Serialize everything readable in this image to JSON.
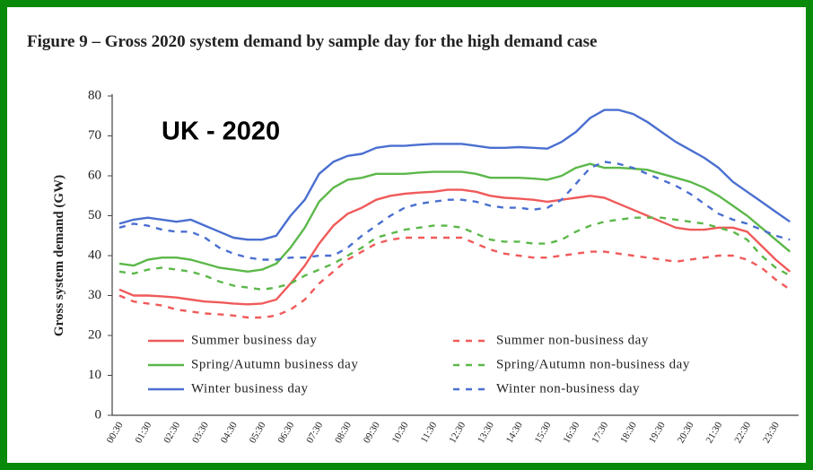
{
  "chart_data": {
    "type": "line",
    "title": "Figure 9 – Gross 2020 system demand by sample day for the high demand case",
    "annotation": "UK - 2020",
    "ylabel": "Gross system demand (GW)",
    "categories": [
      "00:30",
      null,
      "01:30",
      null,
      "02:30",
      null,
      "03:30",
      null,
      "04:30",
      null,
      "05:30",
      null,
      "06:30",
      null,
      "07:30",
      null,
      "08:30",
      null,
      "09:30",
      null,
      "10:30",
      null,
      "11:30",
      null,
      "12:30",
      null,
      "13:30",
      null,
      "14:30",
      null,
      "15:30",
      null,
      "16:30",
      null,
      "17:30",
      null,
      "18:30",
      null,
      "19:30",
      null,
      "20:30",
      null,
      "21:30",
      null,
      "22:30",
      null,
      "23:30",
      null
    ],
    "ylim": [
      0,
      80
    ],
    "yticks": [
      0,
      10,
      20,
      30,
      40,
      50,
      60,
      70,
      80
    ],
    "series": [
      {
        "name": "Summer business day",
        "color": "#f05a5a",
        "style": "solid",
        "values": [
          31.5,
          30,
          30,
          29.8,
          29.5,
          29,
          28.5,
          28.3,
          28,
          27.8,
          28,
          29,
          33,
          37.5,
          43,
          47.5,
          50.5,
          52,
          54,
          55,
          55.5,
          55.8,
          56,
          56.5,
          56.5,
          56,
          55,
          54.5,
          54.3,
          54,
          53.5,
          54,
          54.5,
          55,
          54.5,
          53,
          51.5,
          50,
          48.5,
          47,
          46.5,
          46.5,
          47,
          47,
          46,
          42.5,
          39,
          36
        ]
      },
      {
        "name": "Summer non-business day",
        "color": "#f05a5a",
        "style": "dashed",
        "values": [
          30,
          28.5,
          28,
          27.5,
          26.5,
          26,
          25.5,
          25.3,
          25,
          24.5,
          24.5,
          25,
          26.5,
          29,
          33,
          36,
          39,
          41,
          43,
          44,
          44.5,
          44.5,
          44.5,
          44.5,
          44.5,
          43,
          41.5,
          40.5,
          40,
          39.5,
          39.5,
          40,
          40.5,
          41,
          41,
          40.5,
          40,
          39.5,
          39,
          38.5,
          39,
          39.5,
          40,
          40,
          39,
          37,
          34,
          31.5
        ]
      },
      {
        "name": "Spring/Autumn business day",
        "color": "#5cb84a",
        "style": "solid",
        "values": [
          38,
          37.5,
          39,
          39.5,
          39.5,
          39,
          38,
          37,
          36.5,
          36,
          36.5,
          38,
          42,
          47,
          53.5,
          57,
          59,
          59.5,
          60.5,
          60.5,
          60.5,
          60.8,
          61,
          61,
          61,
          60.5,
          59.5,
          59.5,
          59.5,
          59.3,
          59,
          60,
          62,
          63,
          62,
          62,
          61.8,
          61.5,
          60.5,
          59.5,
          58.5,
          57,
          55,
          52.5,
          50,
          47,
          44,
          41
        ]
      },
      {
        "name": "Spring/Autumn non-business day",
        "color": "#5cb84a",
        "style": "dashed",
        "values": [
          36,
          35.5,
          36.5,
          37,
          36.5,
          36,
          35,
          33.5,
          32.5,
          32,
          31.5,
          32,
          33,
          35,
          36.5,
          38,
          40,
          42,
          44.5,
          45.5,
          46.5,
          47,
          47.5,
          47.5,
          47,
          45.5,
          44,
          43.5,
          43.5,
          43,
          43,
          44,
          46,
          47.5,
          48.5,
          49,
          49.5,
          49.5,
          49.5,
          49,
          48.5,
          48,
          47,
          46,
          44,
          40,
          37,
          35
        ]
      },
      {
        "name": "Winter business day",
        "color": "#4a6fd0",
        "style": "solid",
        "values": [
          48,
          49,
          49.5,
          49,
          48.5,
          49,
          47.5,
          46,
          44.5,
          44,
          44,
          45,
          50,
          54,
          60.5,
          63.5,
          65,
          65.5,
          67,
          67.5,
          67.5,
          67.8,
          68,
          68,
          68,
          67.5,
          67,
          67,
          67.2,
          67,
          66.8,
          68.5,
          71,
          74.5,
          76.5,
          76.5,
          75.5,
          73.5,
          71,
          68.5,
          66.5,
          64.5,
          62,
          58.5,
          56,
          53.5,
          51,
          48.5
        ]
      },
      {
        "name": "Winter non-business day",
        "color": "#4a6fd0",
        "style": "dashed",
        "values": [
          47,
          48,
          47.5,
          46.5,
          46,
          46,
          44.5,
          42,
          40.5,
          39.5,
          39,
          39,
          39.5,
          39.5,
          40,
          40,
          42,
          45,
          47.5,
          50,
          52,
          53,
          53.5,
          54,
          54,
          53.5,
          52.5,
          52,
          52,
          51.5,
          52,
          54,
          58,
          62,
          63.5,
          63,
          62,
          60.5,
          59,
          57.5,
          55.5,
          53,
          50.5,
          49,
          48,
          46.5,
          45,
          44
        ]
      }
    ]
  }
}
